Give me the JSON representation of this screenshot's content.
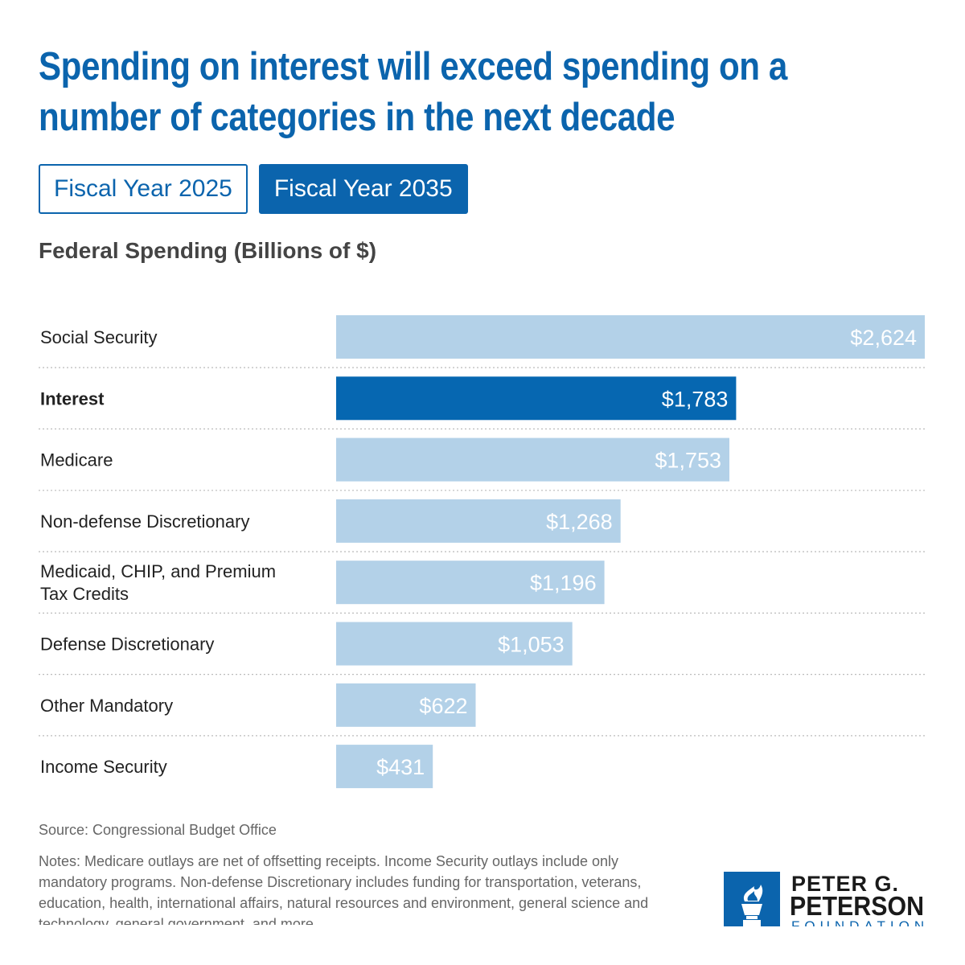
{
  "title_line1": "Spending on interest will exceed spending on a",
  "title_line2": "number of categories in the next decade",
  "tabs": [
    {
      "label": "Fiscal Year 2025",
      "active": false
    },
    {
      "label": "Fiscal Year 2035",
      "active": true
    }
  ],
  "chart_data": {
    "type": "bar",
    "orientation": "horizontal",
    "title": "Federal Spending (Billions of $)",
    "categories": [
      "Social Security",
      "Interest",
      "Medicare",
      "Non-defense Discretionary",
      "Medicaid, CHIP, and Premium Tax Credits",
      "Defense Discretionary",
      "Other Mandatory",
      "Income Security"
    ],
    "values": [
      2624,
      1783,
      1753,
      1268,
      1196,
      1053,
      622,
      431
    ],
    "value_labels": [
      "$2,624",
      "$1,783",
      "$1,753",
      "$1,268",
      "$1,196",
      "$1,053",
      "$622",
      "$431"
    ],
    "highlighted_category": "Interest",
    "xlim": [
      0,
      2624
    ],
    "grid": false,
    "colors": {
      "highlight": "#0667b1",
      "default": "#b3d1e8",
      "label_text": "#ffffff"
    }
  },
  "source": "Source: Congressional Budget Office",
  "notes": "Notes: Medicare outlays are net of offsetting receipts. Income Security outlays include only mandatory programs. Non-defense Discretionary includes funding for transportation, veterans, education, health, international affairs, natural resources and environment, general science and technology, general government, and more.",
  "logo": {
    "line1": "PETER G.",
    "line2": "PETERSON",
    "line3": "FOUNDATION"
  },
  "colors": {
    "brand": "#0b64ad"
  }
}
